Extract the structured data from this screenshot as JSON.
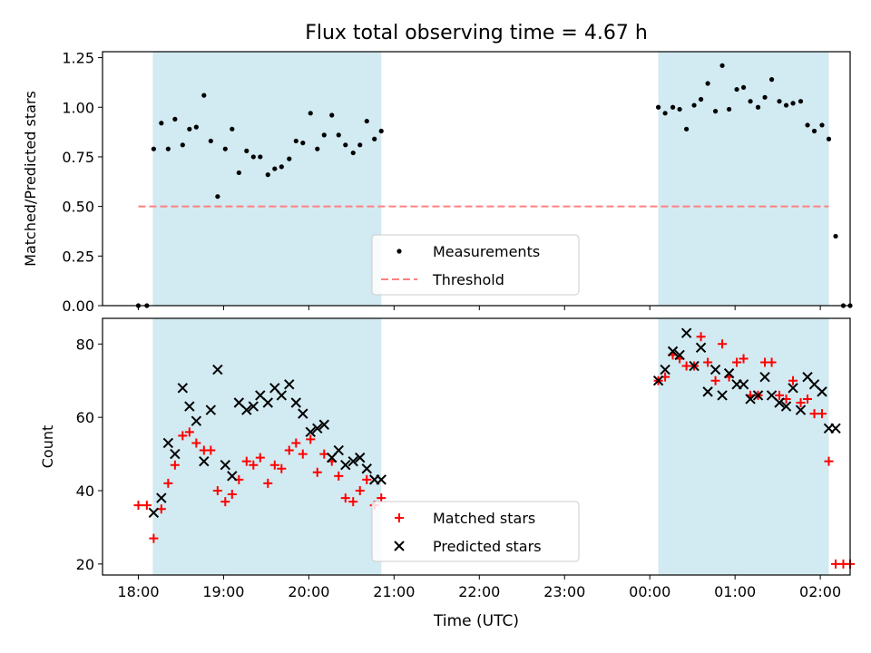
{
  "figure": {
    "title": "Flux total observing time = 4.67 h",
    "xlabel": "Time (UTC)",
    "x_tick_labels": [
      "18:00",
      "19:00",
      "20:00",
      "21:00",
      "22:00",
      "23:00",
      "00:00",
      "01:00",
      "02:00"
    ],
    "xlim_hours": [
      17.58,
      26.35
    ],
    "colors": {
      "shade": "#add8e6",
      "measurements": "#000000",
      "threshold": "#ff8080",
      "matched": "#ff0000",
      "predicted": "#000000"
    }
  },
  "chart_data": [
    {
      "type": "scatter",
      "panel": "top",
      "ylabel": "Matched/Predicted stars",
      "ylim": [
        0,
        1.28
      ],
      "y_ticks": [
        "0.00",
        "0.25",
        "0.50",
        "0.75",
        "1.00",
        "1.25"
      ],
      "y_tick_values": [
        0,
        0.25,
        0.5,
        0.75,
        1.0,
        1.25
      ],
      "shaded_intervals": [
        [
          18.17,
          20.85
        ],
        [
          24.1,
          26.1
        ]
      ],
      "legend": {
        "location": "lower center",
        "entries": [
          "Measurements",
          "Threshold"
        ]
      },
      "threshold": {
        "name": "Threshold",
        "y": 0.5,
        "x_range": [
          18.0,
          26.1
        ],
        "style": "dashed"
      },
      "series": [
        {
          "name": "Measurements",
          "points": [
            [
              18.0,
              0.0
            ],
            [
              18.1,
              0.0
            ],
            [
              18.18,
              0.79
            ],
            [
              18.27,
              0.92
            ],
            [
              18.35,
              0.79
            ],
            [
              18.43,
              0.94
            ],
            [
              18.52,
              0.81
            ],
            [
              18.6,
              0.89
            ],
            [
              18.68,
              0.9
            ],
            [
              18.77,
              1.06
            ],
            [
              18.85,
              0.83
            ],
            [
              18.93,
              0.55
            ],
            [
              19.02,
              0.79
            ],
            [
              19.1,
              0.89
            ],
            [
              19.18,
              0.67
            ],
            [
              19.27,
              0.78
            ],
            [
              19.35,
              0.75
            ],
            [
              19.43,
              0.75
            ],
            [
              19.52,
              0.66
            ],
            [
              19.6,
              0.69
            ],
            [
              19.68,
              0.7
            ],
            [
              19.77,
              0.74
            ],
            [
              19.85,
              0.83
            ],
            [
              19.93,
              0.82
            ],
            [
              20.02,
              0.97
            ],
            [
              20.1,
              0.79
            ],
            [
              20.18,
              0.86
            ],
            [
              20.27,
              0.96
            ],
            [
              20.35,
              0.86
            ],
            [
              20.43,
              0.81
            ],
            [
              20.52,
              0.77
            ],
            [
              20.6,
              0.81
            ],
            [
              20.68,
              0.93
            ],
            [
              20.77,
              0.84
            ],
            [
              20.85,
              0.88
            ],
            [
              24.1,
              1.0
            ],
            [
              24.18,
              0.97
            ],
            [
              24.27,
              1.0
            ],
            [
              24.35,
              0.99
            ],
            [
              24.43,
              0.89
            ],
            [
              24.52,
              1.01
            ],
            [
              24.6,
              1.04
            ],
            [
              24.68,
              1.12
            ],
            [
              24.77,
              0.98
            ],
            [
              24.85,
              1.21
            ],
            [
              24.93,
              0.99
            ],
            [
              25.02,
              1.09
            ],
            [
              25.1,
              1.1
            ],
            [
              25.18,
              1.03
            ],
            [
              25.27,
              1.0
            ],
            [
              25.35,
              1.05
            ],
            [
              25.43,
              1.14
            ],
            [
              25.52,
              1.03
            ],
            [
              25.6,
              1.01
            ],
            [
              25.68,
              1.02
            ],
            [
              25.77,
              1.03
            ],
            [
              25.85,
              0.91
            ],
            [
              25.93,
              0.88
            ],
            [
              26.02,
              0.91
            ],
            [
              26.1,
              0.84
            ],
            [
              26.18,
              0.35
            ],
            [
              26.27,
              0.0
            ],
            [
              26.35,
              0.0
            ]
          ]
        }
      ]
    },
    {
      "type": "scatter",
      "panel": "bottom",
      "ylabel": "Count",
      "ylim": [
        17,
        87
      ],
      "y_ticks": [
        "20",
        "40",
        "60",
        "80"
      ],
      "y_tick_values": [
        20,
        40,
        60,
        80
      ],
      "shaded_intervals": [
        [
          18.17,
          20.85
        ],
        [
          24.1,
          26.1
        ]
      ],
      "legend": {
        "location": "lower center",
        "entries": [
          "Matched stars",
          "Predicted stars"
        ]
      },
      "series": [
        {
          "name": "Matched stars",
          "marker": "plus",
          "points": [
            [
              18.0,
              36
            ],
            [
              18.1,
              36
            ],
            [
              18.18,
              27
            ],
            [
              18.27,
              35
            ],
            [
              18.35,
              42
            ],
            [
              18.43,
              47
            ],
            [
              18.52,
              55
            ],
            [
              18.6,
              56
            ],
            [
              18.68,
              53
            ],
            [
              18.77,
              51
            ],
            [
              18.85,
              51
            ],
            [
              18.93,
              40
            ],
            [
              19.02,
              37
            ],
            [
              19.1,
              39
            ],
            [
              19.18,
              43
            ],
            [
              19.27,
              48
            ],
            [
              19.35,
              47
            ],
            [
              19.43,
              49
            ],
            [
              19.52,
              42
            ],
            [
              19.6,
              47
            ],
            [
              19.68,
              46
            ],
            [
              19.77,
              51
            ],
            [
              19.85,
              53
            ],
            [
              19.93,
              50
            ],
            [
              20.02,
              54
            ],
            [
              20.1,
              45
            ],
            [
              20.18,
              50
            ],
            [
              20.27,
              48
            ],
            [
              20.35,
              44
            ],
            [
              20.43,
              38
            ],
            [
              20.52,
              37
            ],
            [
              20.6,
              40
            ],
            [
              20.68,
              43
            ],
            [
              20.77,
              36
            ],
            [
              20.85,
              38
            ],
            [
              24.1,
              70
            ],
            [
              24.18,
              71
            ],
            [
              24.27,
              77
            ],
            [
              24.35,
              76
            ],
            [
              24.43,
              74
            ],
            [
              24.52,
              74
            ],
            [
              24.6,
              82
            ],
            [
              24.68,
              75
            ],
            [
              24.77,
              70
            ],
            [
              24.85,
              80
            ],
            [
              24.93,
              71
            ],
            [
              25.02,
              75
            ],
            [
              25.1,
              76
            ],
            [
              25.18,
              66
            ],
            [
              25.27,
              66
            ],
            [
              25.35,
              75
            ],
            [
              25.43,
              75
            ],
            [
              25.52,
              66
            ],
            [
              25.6,
              65
            ],
            [
              25.68,
              70
            ],
            [
              25.77,
              64
            ],
            [
              25.85,
              65
            ],
            [
              25.93,
              61
            ],
            [
              26.02,
              61
            ],
            [
              26.1,
              48
            ],
            [
              26.18,
              20
            ],
            [
              26.27,
              20
            ],
            [
              26.35,
              20
            ]
          ]
        },
        {
          "name": "Predicted stars",
          "marker": "x",
          "points": [
            [
              18.18,
              34
            ],
            [
              18.27,
              38
            ],
            [
              18.35,
              53
            ],
            [
              18.43,
              50
            ],
            [
              18.52,
              68
            ],
            [
              18.6,
              63
            ],
            [
              18.68,
              59
            ],
            [
              18.77,
              48
            ],
            [
              18.85,
              62
            ],
            [
              18.93,
              73
            ],
            [
              19.02,
              47
            ],
            [
              19.1,
              44
            ],
            [
              19.18,
              64
            ],
            [
              19.27,
              62
            ],
            [
              19.35,
              63
            ],
            [
              19.43,
              66
            ],
            [
              19.52,
              64
            ],
            [
              19.6,
              68
            ],
            [
              19.68,
              66
            ],
            [
              19.77,
              69
            ],
            [
              19.85,
              64
            ],
            [
              19.93,
              61
            ],
            [
              20.02,
              56
            ],
            [
              20.1,
              57
            ],
            [
              20.18,
              58
            ],
            [
              20.27,
              49
            ],
            [
              20.35,
              51
            ],
            [
              20.43,
              47
            ],
            [
              20.52,
              48
            ],
            [
              20.6,
              49
            ],
            [
              20.68,
              46
            ],
            [
              20.77,
              43
            ],
            [
              20.85,
              43
            ],
            [
              24.1,
              70
            ],
            [
              24.18,
              73
            ],
            [
              24.27,
              78
            ],
            [
              24.35,
              77
            ],
            [
              24.43,
              83
            ],
            [
              24.52,
              74
            ],
            [
              24.6,
              79
            ],
            [
              24.68,
              67
            ],
            [
              24.77,
              73
            ],
            [
              24.85,
              66
            ],
            [
              24.93,
              72
            ],
            [
              25.02,
              69
            ],
            [
              25.1,
              69
            ],
            [
              25.18,
              65
            ],
            [
              25.27,
              66
            ],
            [
              25.35,
              71
            ],
            [
              25.43,
              66
            ],
            [
              25.52,
              64
            ],
            [
              25.6,
              63
            ],
            [
              25.68,
              68
            ],
            [
              25.77,
              62
            ],
            [
              25.85,
              71
            ],
            [
              25.93,
              69
            ],
            [
              26.02,
              67
            ],
            [
              26.1,
              57
            ],
            [
              26.18,
              57
            ]
          ]
        }
      ]
    }
  ]
}
